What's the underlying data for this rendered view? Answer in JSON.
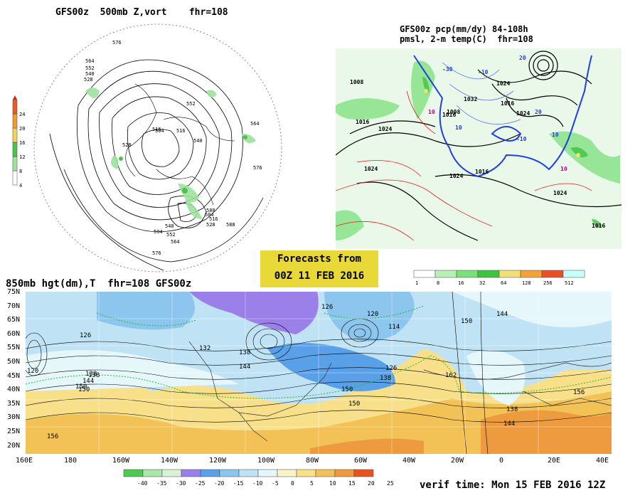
{
  "titles": {
    "p500": "GFS00z  500mb Z,vort    fhr=108",
    "pcp_line1": "GFS00z pcp(mm/dy) 84-108h",
    "pcp_line2": "pmsl, 2-m temp(C)  fhr=108",
    "p850": "850mb hgt(dm),T  fhr=108 GFS00z"
  },
  "forecast_box": {
    "line1": "Forecasts from",
    "line2": "00Z 11 FEB 2016"
  },
  "verif_time": "verif time: Mon 15 FEB 2016 12Z",
  "colors": {
    "vort": [
      "#ffffff",
      "#9ee29e",
      "#4cc44c",
      "#f2d35a",
      "#ef9a32",
      "#e85a26",
      "#d42020"
    ],
    "pcp": [
      "#ffffff",
      "#b7f0b7",
      "#7be07b",
      "#3fc43f",
      "#f0e07a",
      "#f3a23a",
      "#e8502a",
      "#c8ffff"
    ],
    "temp": [
      "#4ec94e",
      "#a8e8a8",
      "#d7f2d7",
      "#9a80e8",
      "#5aa0e8",
      "#8cc6ee",
      "#bfe3f5",
      "#e6f7fb",
      "#fbf3c7",
      "#f8e08a",
      "#f3c257",
      "#ee9a3e",
      "#e8531f"
    ]
  },
  "vort_scale": [
    "4",
    "8",
    "12",
    "16",
    "20",
    "24"
  ],
  "pcp_scale": [
    "1",
    "8",
    "16",
    "32",
    "64",
    "128",
    "256",
    "512"
  ],
  "temp_scale": [
    "-40",
    "-35",
    "-30",
    "-25",
    "-20",
    "-15",
    "-10",
    "-5",
    "0",
    "5",
    "10",
    "15",
    "20",
    "25"
  ],
  "lat_labels": [
    "75N",
    "70N",
    "65N",
    "60N",
    "55N",
    "50N",
    "45N",
    "40N",
    "35N",
    "30N",
    "25N",
    "20N"
  ],
  "lon_labels": [
    "160E",
    "180",
    "160W",
    "140W",
    "120W",
    "100W",
    "80W",
    "60W",
    "40W",
    "20W",
    "0",
    "20E",
    "40E"
  ],
  "p500_labels": [
    "576",
    "564",
    "552",
    "540",
    "528",
    "516",
    "504",
    "516",
    "528",
    "540",
    "552",
    "564",
    "576",
    "588",
    "594",
    "540",
    "552",
    "564",
    "576",
    "588",
    "504",
    "516",
    "528"
  ],
  "pcp_labels": [
    "1008",
    "1016",
    "1024",
    "1024",
    "1032",
    "1016",
    "1008",
    "1024",
    "1016",
    "1024",
    "1016",
    "1024",
    "1024",
    "1016",
    "10",
    "20",
    "-10",
    "10",
    "-30",
    "10",
    "-10",
    "10",
    "20"
  ],
  "h850_labels": [
    "126",
    "132",
    "138",
    "144",
    "150",
    "156",
    "138",
    "144",
    "150",
    "126",
    "138",
    "120",
    "114",
    "126",
    "150",
    "138",
    "162",
    "150",
    "144",
    "156",
    "150",
    "120",
    "138",
    "144"
  ]
}
